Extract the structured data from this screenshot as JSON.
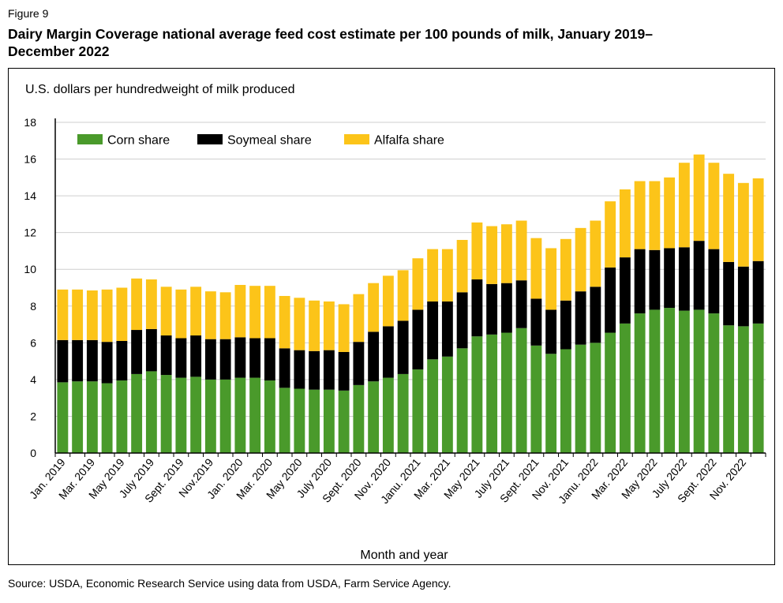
{
  "figure_label": "Figure 9",
  "title_line1": "Dairy Margin Coverage national average feed cost estimate per 100 pounds of milk, January 2019–",
  "title_line2": "December 2022",
  "source": "Source: USDA, Economic Research Service using data from USDA, Farm Service Agency.",
  "colors": {
    "corn": "#4a9a2b",
    "soymeal": "#000000",
    "alfalfa": "#fcc419",
    "grid": "#cfcfcf"
  },
  "chart_data": {
    "type": "bar",
    "stacked": true,
    "title": "Dairy Margin Coverage national average feed cost estimate per 100 pounds of milk, January 2019–December 2022",
    "ylabel": "U.S. dollars per hundredweight of milk produced",
    "xlabel": "Month and year",
    "ylim": [
      0,
      18
    ],
    "yticks": [
      0,
      2,
      4,
      6,
      8,
      10,
      12,
      14,
      16,
      18
    ],
    "grid": true,
    "legend_position": "top-left",
    "xtick_labels": [
      {
        "index": 0,
        "label": "Jan. 2019"
      },
      {
        "index": 2,
        "label": "Mar. 2019"
      },
      {
        "index": 4,
        "label": "May 2019"
      },
      {
        "index": 6,
        "label": "July 2019"
      },
      {
        "index": 8,
        "label": "Sept. 2019"
      },
      {
        "index": 10,
        "label": "Nov.2019"
      },
      {
        "index": 12,
        "label": "Jan. 2020"
      },
      {
        "index": 14,
        "label": "Mar. 2020"
      },
      {
        "index": 16,
        "label": "May 2020"
      },
      {
        "index": 18,
        "label": "July 2020"
      },
      {
        "index": 20,
        "label": "Sept. 2020"
      },
      {
        "index": 22,
        "label": "Nov. 2020"
      },
      {
        "index": 24,
        "label": "Janu. 2021"
      },
      {
        "index": 26,
        "label": "Mar. 2021"
      },
      {
        "index": 28,
        "label": "May 2021"
      },
      {
        "index": 30,
        "label": "July 2021"
      },
      {
        "index": 32,
        "label": "Sept. 2021"
      },
      {
        "index": 34,
        "label": "Nov. 2021"
      },
      {
        "index": 36,
        "label": "Janu. 2022"
      },
      {
        "index": 38,
        "label": "Mar. 2022"
      },
      {
        "index": 40,
        "label": "May 2022"
      },
      {
        "index": 42,
        "label": "July 2022"
      },
      {
        "index": 44,
        "label": "Sept. 2022"
      },
      {
        "index": 46,
        "label": "Nov. 2022"
      }
    ],
    "series": [
      {
        "name": "Corn share",
        "values": [
          3.85,
          3.9,
          3.9,
          3.8,
          3.95,
          4.3,
          4.45,
          4.25,
          4.1,
          4.15,
          4.0,
          4.0,
          4.1,
          4.1,
          3.95,
          3.55,
          3.5,
          3.45,
          3.45,
          3.4,
          3.7,
          3.9,
          4.1,
          4.3,
          4.55,
          5.1,
          5.25,
          5.7,
          6.35,
          6.45,
          6.55,
          6.8,
          5.85,
          5.4,
          5.65,
          5.9,
          6.0,
          6.55,
          7.05,
          7.6,
          7.8,
          7.9,
          7.75,
          7.8,
          7.6,
          6.95,
          6.9,
          7.05
        ]
      },
      {
        "name": "Soymeal share",
        "values": [
          2.3,
          2.25,
          2.25,
          2.25,
          2.15,
          2.4,
          2.3,
          2.15,
          2.15,
          2.25,
          2.2,
          2.2,
          2.2,
          2.15,
          2.3,
          2.15,
          2.1,
          2.1,
          2.15,
          2.1,
          2.35,
          2.7,
          2.8,
          2.9,
          3.25,
          3.15,
          3.0,
          3.05,
          3.1,
          2.75,
          2.7,
          2.6,
          2.55,
          2.4,
          2.65,
          2.9,
          3.05,
          3.55,
          3.6,
          3.5,
          3.25,
          3.25,
          3.45,
          3.75,
          3.5,
          3.45,
          3.25,
          3.4
        ]
      },
      {
        "name": "Alfalfa share",
        "values": [
          2.75,
          2.75,
          2.7,
          2.85,
          2.9,
          2.8,
          2.7,
          2.65,
          2.65,
          2.65,
          2.6,
          2.55,
          2.85,
          2.85,
          2.85,
          2.85,
          2.85,
          2.75,
          2.65,
          2.6,
          2.6,
          2.65,
          2.75,
          2.75,
          2.8,
          2.85,
          2.85,
          2.85,
          3.1,
          3.15,
          3.2,
          3.25,
          3.3,
          3.35,
          3.35,
          3.45,
          3.6,
          3.6,
          3.7,
          3.7,
          3.75,
          3.85,
          4.6,
          4.7,
          4.7,
          4.8,
          4.55,
          4.5
        ]
      }
    ]
  }
}
